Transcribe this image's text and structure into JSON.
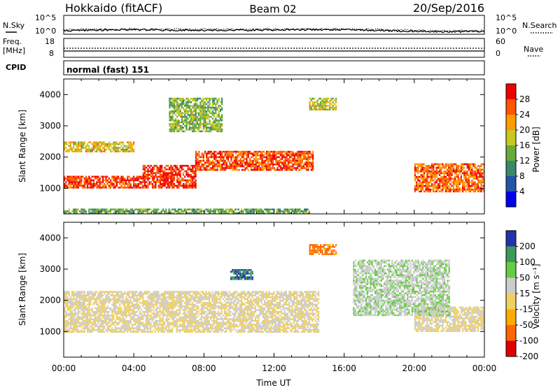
{
  "header": {
    "radar": "Hokkaido (fitACF)",
    "beam": "Beam 02",
    "date": "20/Sep/2016"
  },
  "noise_panel": {
    "left_label": "N.Sky",
    "right_label": "N.Search",
    "ticks": [
      "10^5",
      "10^0"
    ]
  },
  "freq_panel": {
    "left_label_1": "Freq.",
    "left_label_2": "[MHz]",
    "left_ticks": [
      "18",
      "8"
    ],
    "right_label": "Nave",
    "right_ticks": [
      "60",
      "0"
    ]
  },
  "cpid_panel": {
    "label": "CPID",
    "mode": "normal (fast) 151"
  },
  "x_axis": {
    "title": "Time UT",
    "ticks": [
      "00:00",
      "04:00",
      "08:00",
      "12:00",
      "16:00",
      "20:00",
      "00:00"
    ]
  },
  "power_panel": {
    "ylabel": "Slant Range [km]",
    "yticks": [
      "4000",
      "3000",
      "2000",
      "1000"
    ],
    "colorbar_label": "Power [dB]",
    "colorbar_ticks": [
      "28",
      "24",
      "20",
      "16",
      "12",
      "8",
      "4"
    ]
  },
  "velocity_panel": {
    "ylabel": "Slant Range [km]",
    "yticks": [
      "4000",
      "3000",
      "2000",
      "1000"
    ],
    "colorbar_label": "Velocity [m s⁻¹]",
    "colorbar_ticks": [
      "200",
      "100",
      "50",
      "15",
      "-15",
      "-50",
      "-100",
      "-200"
    ]
  },
  "colors": {
    "power_scale": [
      "#0000ee",
      "#2255aa",
      "#3a8a6a",
      "#6aaa3a",
      "#c8c820",
      "#ff9a00",
      "#ff5500",
      "#ee0000"
    ],
    "velocity_scale": [
      "#e00000",
      "#ff6600",
      "#ffaa00",
      "#f0d060",
      "#cccccc",
      "#66cc44",
      "#3a9a5a",
      "#2233aa"
    ]
  },
  "chart_data": [
    {
      "type": "heatmap",
      "title": "Power [dB]",
      "xlabel": "Time UT",
      "ylabel": "Slant Range [km]",
      "xlim": [
        "00:00",
        "24:00"
      ],
      "ylim": [
        180,
        4500
      ],
      "colorbar_range": [
        0,
        30
      ],
      "regions": [
        {
          "t0": 0.0,
          "t1": 4.5,
          "r0": 1000,
          "r1": 1400,
          "value": 26
        },
        {
          "t0": 4.5,
          "t1": 7.5,
          "r0": 1050,
          "r1": 1750,
          "value": 27
        },
        {
          "t0": 7.5,
          "t1": 14.2,
          "r0": 1600,
          "r1": 2200,
          "value": 25
        },
        {
          "t0": 20.0,
          "t1": 24.0,
          "r0": 900,
          "r1": 1800,
          "value": 24
        },
        {
          "t0": 0.0,
          "t1": 14.0,
          "r0": 180,
          "r1": 350,
          "value": 12
        },
        {
          "t0": 0.0,
          "t1": 4.0,
          "r0": 2200,
          "r1": 2500,
          "value": 18
        },
        {
          "t0": 6.0,
          "t1": 9.0,
          "r0": 2800,
          "r1": 3900,
          "value": 14
        },
        {
          "t0": 14.0,
          "t1": 15.5,
          "r0": 3500,
          "r1": 3900,
          "value": 16
        }
      ]
    },
    {
      "type": "heatmap",
      "title": "Velocity [m s⁻¹]",
      "xlabel": "Time UT",
      "ylabel": "Slant Range [km]",
      "xlim": [
        "00:00",
        "24:00"
      ],
      "ylim": [
        180,
        4500
      ],
      "colorbar_range": [
        -200,
        200
      ],
      "regions": [
        {
          "t0": 0.0,
          "t1": 14.5,
          "r0": 1000,
          "r1": 2300,
          "value": 0
        },
        {
          "t0": 20.0,
          "t1": 24.0,
          "r0": 1000,
          "r1": 1800,
          "value": 0
        },
        {
          "t0": 16.5,
          "t1": 22.0,
          "r0": 1500,
          "r1": 3300,
          "value": 40
        },
        {
          "t0": 9.5,
          "t1": 10.8,
          "r0": 2700,
          "r1": 3000,
          "value": 150
        },
        {
          "t0": 14.0,
          "t1": 15.5,
          "r0": 3500,
          "r1": 3800,
          "value": -120
        }
      ]
    }
  ]
}
